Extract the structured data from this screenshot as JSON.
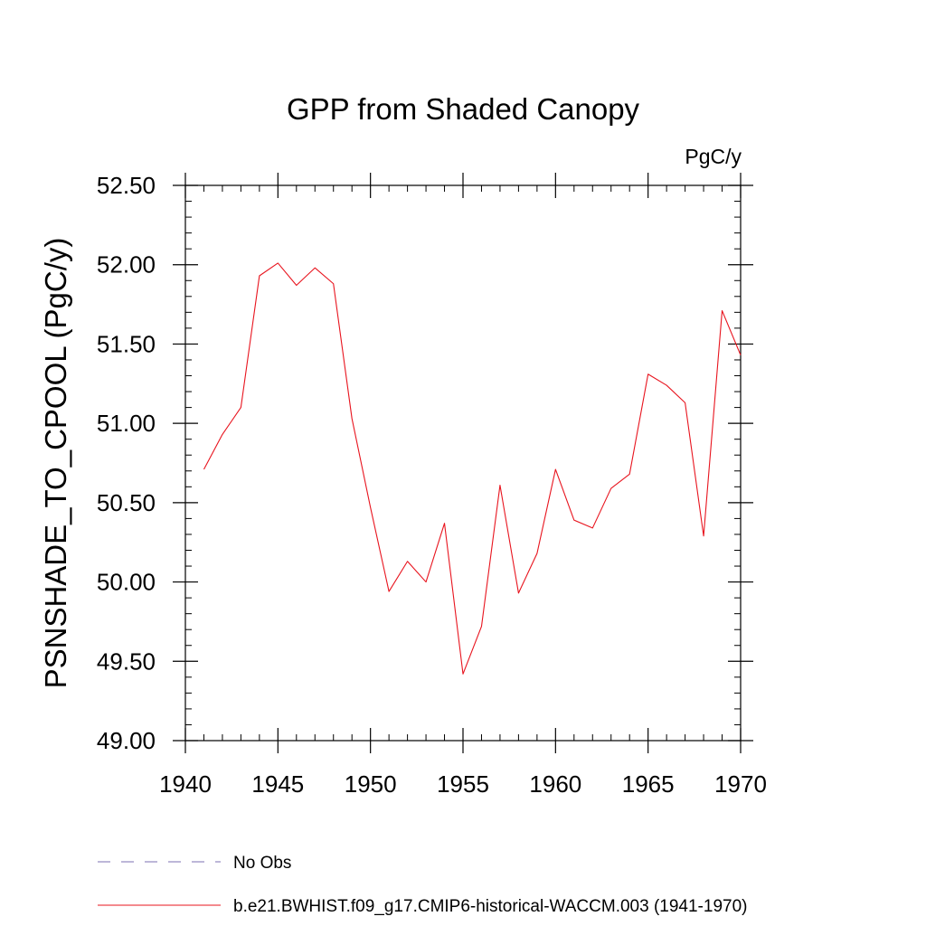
{
  "chart_data": {
    "type": "line",
    "title": "GPP from Shaded Canopy",
    "units_label": "PgC/y",
    "ylabel": "PSNSHADE_TO_CPOOL  (PgC/y)",
    "xlabel": "",
    "xlim": [
      1940,
      1970
    ],
    "ylim": [
      49.0,
      52.5
    ],
    "x_ticks": [
      1940,
      1945,
      1950,
      1955,
      1960,
      1965,
      1970
    ],
    "x_tick_labels": [
      "1940",
      "1945",
      "1950",
      "1955",
      "1960",
      "1965",
      "1970"
    ],
    "y_ticks": [
      49.0,
      49.5,
      50.0,
      50.5,
      51.0,
      51.5,
      52.0,
      52.5
    ],
    "y_tick_labels": [
      "49.00",
      "49.50",
      "50.00",
      "50.50",
      "51.00",
      "51.50",
      "52.00",
      "52.50"
    ],
    "x_minor_step": 1,
    "y_minor_step": 0.1,
    "series": [
      {
        "name": "b.e21.BWHIST.f09_g17.CMIP6-historical-WACCM.003 (1941-1970)",
        "color": "#e8141e",
        "style": "solid",
        "x": [
          1941,
          1942,
          1943,
          1944,
          1945,
          1946,
          1947,
          1948,
          1949,
          1950,
          1951,
          1952,
          1953,
          1954,
          1955,
          1956,
          1957,
          1958,
          1959,
          1960,
          1961,
          1962,
          1963,
          1964,
          1965,
          1966,
          1967,
          1968,
          1969,
          1970
        ],
        "values": [
          50.71,
          50.93,
          51.1,
          51.93,
          52.01,
          51.87,
          51.98,
          51.88,
          51.03,
          50.47,
          49.94,
          50.13,
          50.0,
          50.37,
          49.42,
          49.72,
          50.61,
          49.93,
          50.18,
          50.71,
          50.39,
          50.34,
          50.59,
          50.68,
          51.31,
          51.24,
          51.13,
          50.29,
          51.71,
          51.43
        ]
      }
    ],
    "legend": [
      {
        "label": "No Obs",
        "color": "#7b6fb0",
        "style": "dashed"
      },
      {
        "label": "b.e21.BWHIST.f09_g17.CMIP6-historical-WACCM.003 (1941-1970)",
        "color": "#e8141e",
        "style": "solid"
      }
    ],
    "legend_placement": "bottom"
  }
}
